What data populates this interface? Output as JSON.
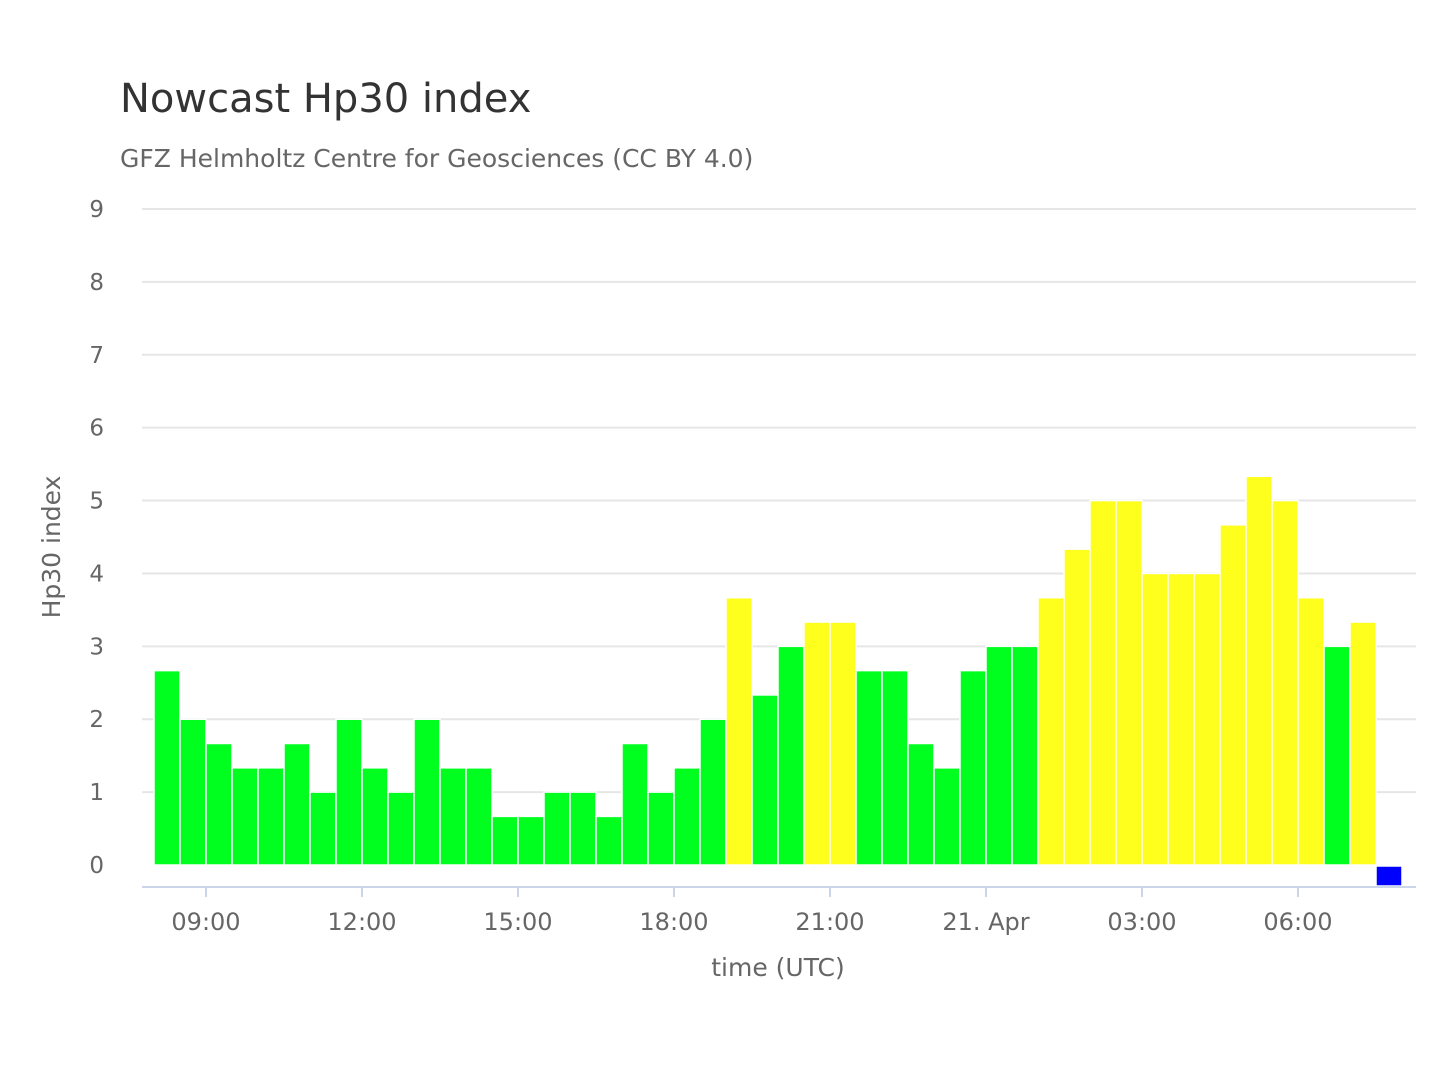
{
  "chart_data": {
    "type": "bar",
    "title": "Nowcast Hp30 index",
    "subtitle": "GFZ Helmholtz Centre for Geosciences (CC BY 4.0)",
    "ylabel": "Hp30 index",
    "xlabel": "time (UTC)",
    "ylim": [
      0,
      9
    ],
    "y_ticks": [
      "0",
      "1",
      "2",
      "3",
      "4",
      "5",
      "6",
      "7",
      "8",
      "9"
    ],
    "x_tick_labels": [
      "09:00",
      "12:00",
      "15:00",
      "18:00",
      "21:00",
      "21. Apr",
      "03:00",
      "06:00"
    ],
    "bar_interval": "30 min",
    "grid": true,
    "colors": {
      "green": "#00ff1e",
      "yellow": "#ffff1e",
      "blue": "#0000ff"
    },
    "values": [
      2.667,
      2,
      1.667,
      1.333,
      1.333,
      1.667,
      1,
      2,
      1.333,
      1,
      2,
      1.333,
      1.333,
      0.667,
      0.667,
      1,
      1,
      0.667,
      1.667,
      1,
      1.333,
      2,
      3.667,
      2.333,
      3,
      3.333,
      3.333,
      2.667,
      2.667,
      1.667,
      1.333,
      2.667,
      3,
      3,
      3.667,
      4.333,
      5,
      5,
      4,
      4,
      4,
      4.667,
      5.333,
      5,
      3.667,
      3,
      3.333,
      0
    ],
    "bar_colors": [
      "green",
      "green",
      "green",
      "green",
      "green",
      "green",
      "green",
      "green",
      "green",
      "green",
      "green",
      "green",
      "green",
      "green",
      "green",
      "green",
      "green",
      "green",
      "green",
      "green",
      "green",
      "green",
      "yellow",
      "green",
      "green",
      "yellow",
      "yellow",
      "green",
      "green",
      "green",
      "green",
      "green",
      "green",
      "green",
      "yellow",
      "yellow",
      "yellow",
      "yellow",
      "yellow",
      "yellow",
      "yellow",
      "yellow",
      "yellow",
      "yellow",
      "yellow",
      "green",
      "yellow",
      "blue"
    ]
  }
}
